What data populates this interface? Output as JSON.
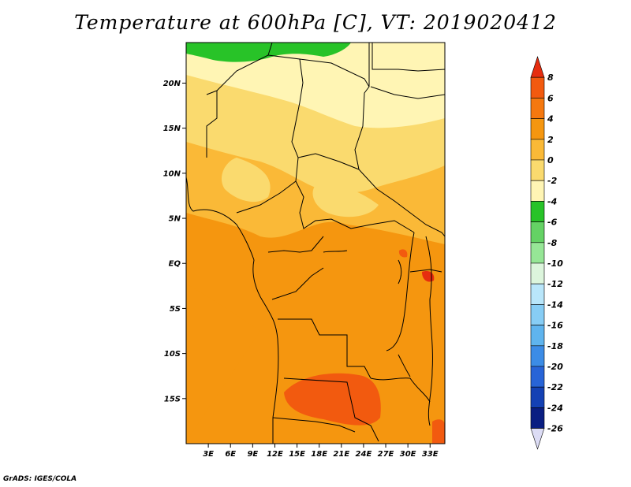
{
  "title": "Temperature at 600hPa [C], VT: 2019020412",
  "credit": "GrADS: IGES/COLA",
  "map": {
    "lon_range": [
      0,
      35
    ],
    "lat_range": [
      -20,
      24.5
    ],
    "lat_labels": [
      {
        "lat": 20,
        "text": "20N"
      },
      {
        "lat": 15,
        "text": "15N"
      },
      {
        "lat": 10,
        "text": "10N"
      },
      {
        "lat": 5,
        "text": "5N"
      },
      {
        "lat": 0,
        "text": "EQ"
      },
      {
        "lat": -5,
        "text": "5S"
      },
      {
        "lat": -10,
        "text": "10S"
      },
      {
        "lat": -15,
        "text": "15S"
      }
    ],
    "lon_labels": [
      {
        "lon": 3,
        "text": "3E"
      },
      {
        "lon": 6,
        "text": "6E"
      },
      {
        "lon": 9,
        "text": "9E"
      },
      {
        "lon": 12,
        "text": "12E"
      },
      {
        "lon": 15,
        "text": "15E"
      },
      {
        "lon": 18,
        "text": "18E"
      },
      {
        "lon": 21,
        "text": "21E"
      },
      {
        "lon": 24,
        "text": "24E"
      },
      {
        "lon": 27,
        "text": "27E"
      },
      {
        "lon": 30,
        "text": "30E"
      },
      {
        "lon": 33,
        "text": "33E"
      }
    ]
  },
  "colorbar": {
    "levels": [
      "8",
      "6",
      "4",
      "2",
      "0",
      "-2",
      "-4",
      "-6",
      "-8",
      "-10",
      "-12",
      "-14",
      "-16",
      "-18",
      "-20",
      "-22",
      "-24",
      "-26"
    ],
    "colors_top_to_bottom": [
      "#e62d0f",
      "#f25a0f",
      "#f5780f",
      "#f5960f",
      "#fab937",
      "#fada6e",
      "#fff5b4",
      "#28c328",
      "#64d264",
      "#96e696",
      "#dcf5dc",
      "#b9e6fa",
      "#87cdf5",
      "#5fb4ee",
      "#3c8ce6",
      "#2864d7",
      "#1441b4",
      "#0a1e82",
      "#dcdcf5"
    ]
  }
}
